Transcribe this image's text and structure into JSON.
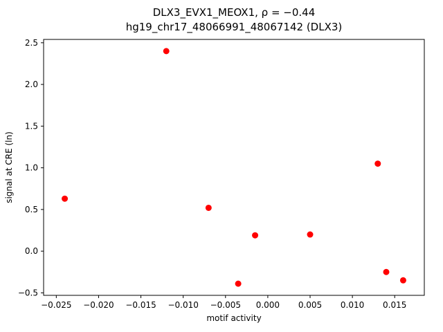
{
  "chart_data": {
    "type": "scatter",
    "title": "DLX3_EVX1_MEOX1, ρ = −0.44",
    "subtitle": "hg19_chr17_48066991_48067142 (DLX3)",
    "xlabel": "motif activity",
    "ylabel": "signal at CRE (ln)",
    "marker_color": "#ff0000",
    "axis_color": "#000000",
    "grid": false,
    "legend": "none",
    "xlim": [
      -0.0265,
      0.0185
    ],
    "ylim": [
      -0.53,
      2.54
    ],
    "xticks": [
      -0.025,
      -0.02,
      -0.015,
      -0.01,
      -0.005,
      0.0,
      0.005,
      0.01,
      0.015
    ],
    "xtick_labels": [
      "−0.025",
      "−0.020",
      "−0.015",
      "−0.010",
      "−0.005",
      "0.000",
      "0.005",
      "0.010",
      "0.015"
    ],
    "yticks": [
      -0.5,
      0.0,
      0.5,
      1.0,
      1.5,
      2.0,
      2.5
    ],
    "ytick_labels": [
      "−0.5",
      "0.0",
      "0.5",
      "1.0",
      "1.5",
      "2.0",
      "2.5"
    ],
    "points": [
      {
        "x": -0.024,
        "y": 0.63
      },
      {
        "x": -0.012,
        "y": 2.4
      },
      {
        "x": -0.007,
        "y": 0.52
      },
      {
        "x": -0.0035,
        "y": -0.39
      },
      {
        "x": -0.0015,
        "y": 0.19
      },
      {
        "x": 0.005,
        "y": 0.2
      },
      {
        "x": 0.013,
        "y": 1.05
      },
      {
        "x": 0.014,
        "y": -0.25
      },
      {
        "x": 0.016,
        "y": -0.35
      }
    ]
  }
}
